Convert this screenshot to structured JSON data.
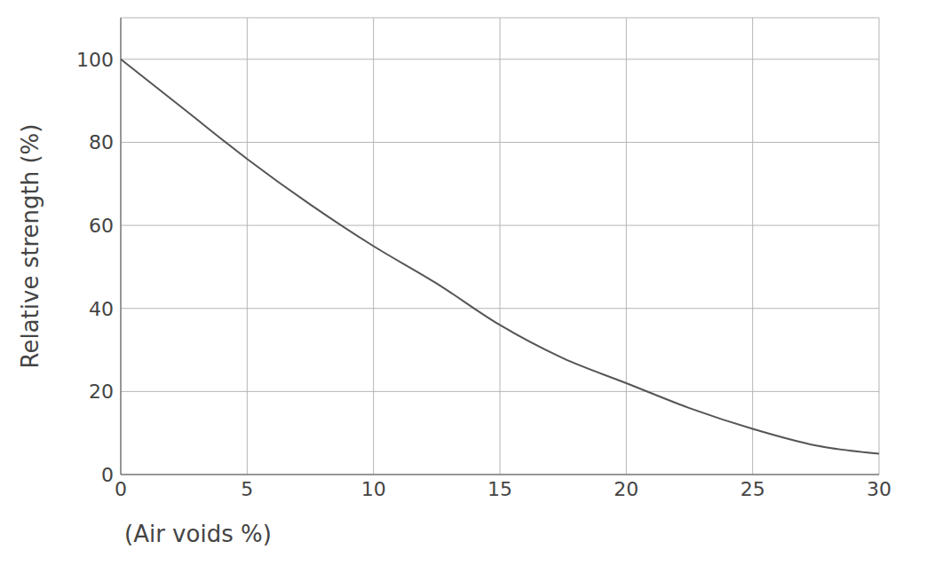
{
  "chart_data": {
    "type": "line",
    "x_label": "(Air voids %)",
    "y_label": "Relative strength (%)",
    "x": [
      0,
      2.5,
      5,
      7.5,
      10,
      12.5,
      15,
      17.5,
      20,
      22.5,
      25,
      27.5,
      30
    ],
    "values": [
      100,
      88,
      76,
      65,
      55,
      46,
      36,
      28,
      22,
      16,
      11,
      7,
      5
    ],
    "color": "#555555",
    "xlim": [
      0,
      30
    ],
    "xticks": [
      0,
      5,
      10,
      15,
      20,
      25,
      30
    ],
    "ylim": [
      0,
      110
    ],
    "yticks": [
      0,
      20,
      40,
      60,
      80,
      100
    ],
    "grid": true
  }
}
